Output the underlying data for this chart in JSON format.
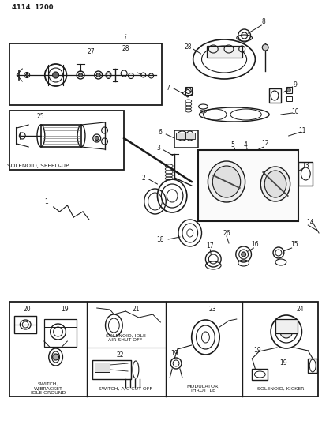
{
  "bg_color": "#ffffff",
  "line_color": "#1a1a1a",
  "text_color": "#1a1a1a",
  "fig_width": 4.08,
  "fig_height": 5.33,
  "dpi": 100,
  "title": "4114  1200",
  "labels": {
    "solenoid_speed_up": "SOLENOID, SPEED-UP",
    "switch_idle": "SWITCH,\nW/BRACKET\nIDLE GROUND",
    "solenoid_idle": "SOLENOID, IDLE\nAIR SHUT-OFF",
    "switch_ac": "SWITCH, A/C CUT-OFF",
    "modulator": "MODULATOR,\nTHROTTLE",
    "solenoid_kicker": "SOLENOID, KICKER",
    "label_i": "i"
  }
}
